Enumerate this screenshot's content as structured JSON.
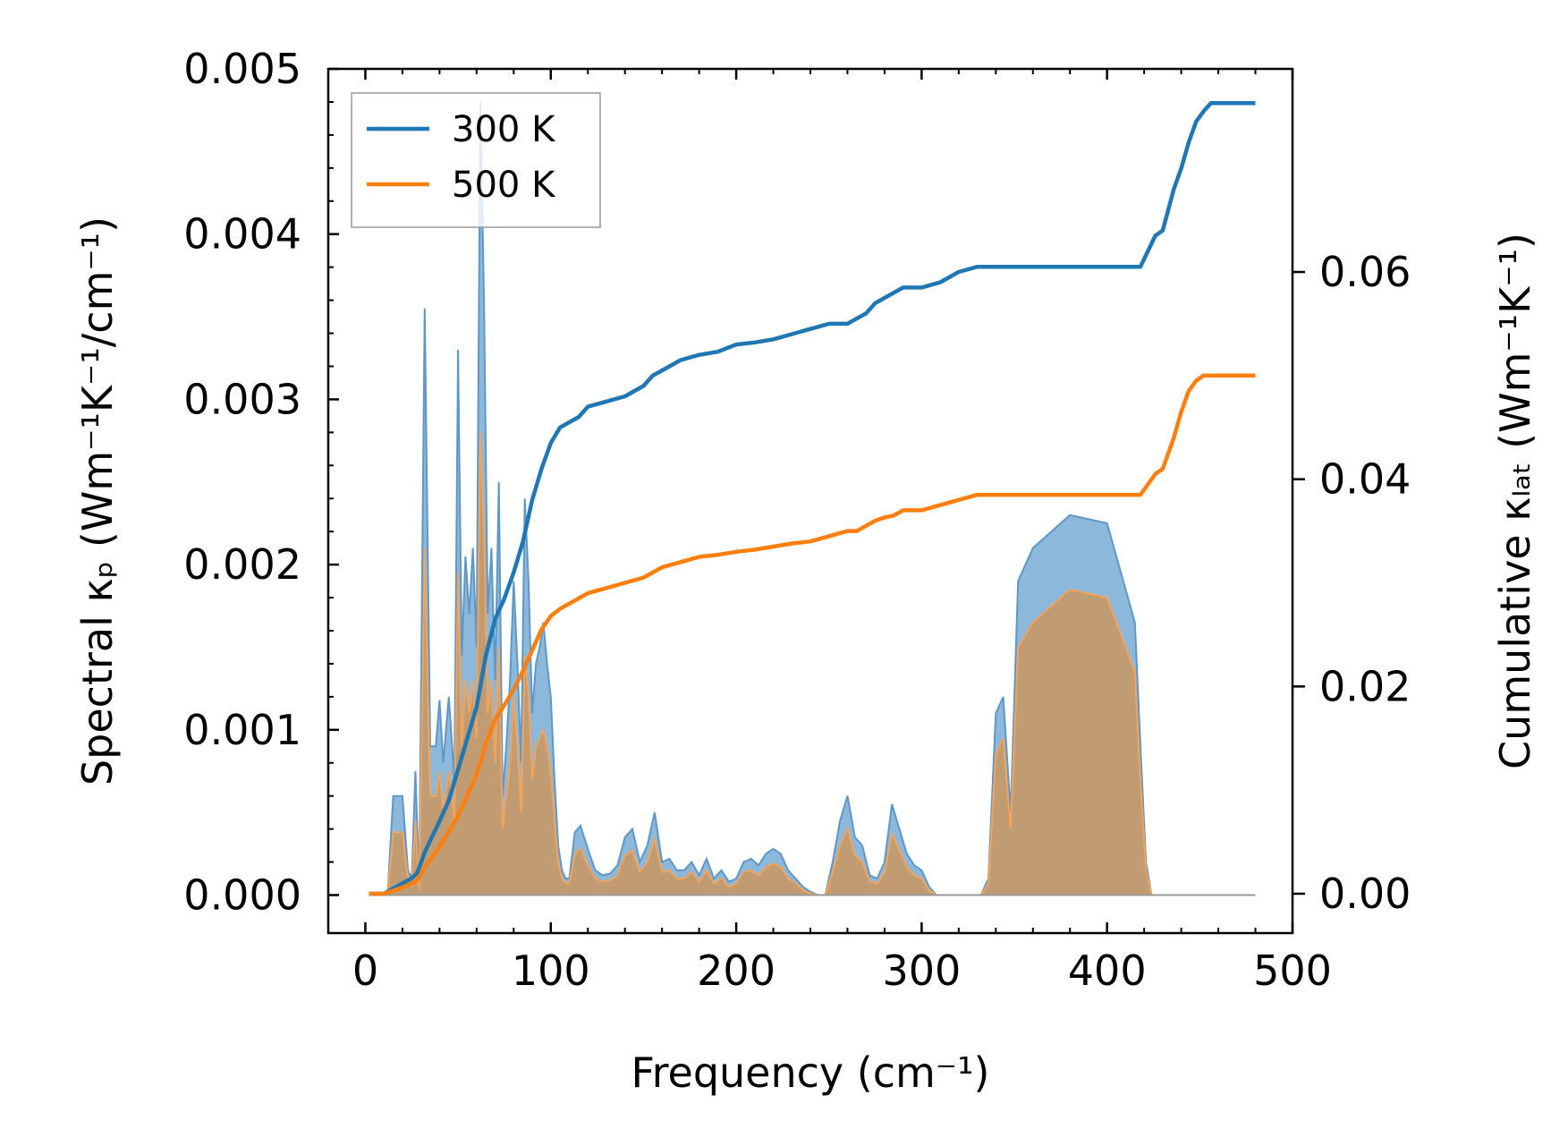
{
  "chart_data": {
    "type": "area",
    "xlabel": "Frequency (cm⁻¹)",
    "ylabel_left": "Spectral κₚ (Wm⁻¹K⁻¹/cm⁻¹)",
    "ylabel_right": "Cumulative κₗₐₜ (Wm⁻¹K⁻¹)",
    "xlim": [
      -20,
      500
    ],
    "ylim_left": [
      -0.00023,
      0.005
    ],
    "ylim_right": [
      -0.0038,
      0.0796
    ],
    "x_ticks": [
      "0",
      "100",
      "200",
      "300",
      "400",
      "500"
    ],
    "y_left_ticks": [
      "0.000",
      "0.001",
      "0.002",
      "0.003",
      "0.004",
      "0.005"
    ],
    "y_right_ticks": [
      "0.00",
      "0.02",
      "0.04",
      "0.06"
    ],
    "legend": {
      "position": "top-left",
      "entries": [
        "300 K",
        "500 K"
      ]
    },
    "colors": {
      "300 K": "#1f77b4",
      "500 K": "#ff7f0e",
      "fill_300": "#7fb0d8",
      "fill_500": "#c49a6c"
    },
    "spectral": {
      "x": [
        2,
        12,
        15,
        18,
        20,
        23,
        25,
        27,
        29,
        32,
        35,
        38,
        40,
        42,
        45,
        48,
        50,
        52,
        54,
        56,
        58,
        60,
        62,
        64,
        66,
        68,
        70,
        72,
        74,
        76,
        78,
        80,
        82,
        84,
        86,
        88,
        90,
        92,
        94,
        96,
        98,
        100,
        102,
        104,
        106,
        108,
        110,
        113,
        116,
        120,
        124,
        128,
        132,
        136,
        140,
        144,
        148,
        152,
        156,
        160,
        164,
        168,
        172,
        176,
        180,
        184,
        188,
        192,
        196,
        200,
        204,
        208,
        212,
        216,
        220,
        224,
        228,
        232,
        236,
        240,
        244,
        248,
        252,
        256,
        260,
        264,
        268,
        272,
        276,
        280,
        284,
        288,
        292,
        296,
        300,
        304,
        308,
        312,
        316,
        320,
        324,
        328,
        332,
        336,
        340,
        344,
        348,
        352,
        360,
        380,
        400,
        415,
        418,
        421,
        424,
        427,
        430,
        433,
        436,
        439,
        442,
        445,
        448,
        451,
        454,
        457,
        460,
        470,
        480
      ],
      "k300": [
        0,
        0,
        0.0006,
        0.0006,
        0.0006,
        0.00015,
        0.0001,
        0.00075,
        5e-05,
        0.00355,
        0.0009,
        0.0009,
        0.00118,
        0.0008,
        0.0012,
        0.0007,
        0.0033,
        0.00145,
        0.00205,
        0.0017,
        0.0021,
        0.0015,
        0.0048,
        0.0036,
        0.0017,
        0.0021,
        0.0013,
        0.0025,
        0.0006,
        0.0009,
        0.0013,
        0.0019,
        0.0014,
        0.0008,
        0.0024,
        0.0019,
        0.0011,
        0.0014,
        0.0015,
        0.00165,
        0.0014,
        0.0012,
        0.0007,
        0.0003,
        0.00015,
        0.0001,
        0.0001,
        0.00038,
        0.00042,
        0.00028,
        0.00015,
        0.00012,
        0.00013,
        0.00018,
        0.00035,
        0.0004,
        0.0002,
        0.0003,
        0.0005,
        0.0002,
        0.00022,
        0.00015,
        0.00015,
        0.0002,
        0.00012,
        0.00022,
        0.0001,
        0.00015,
        8e-05,
        0.0001,
        0.0002,
        0.00022,
        0.00018,
        0.00025,
        0.00028,
        0.00025,
        0.00015,
        0.0001,
        5e-05,
        2e-05,
        0,
        0,
        0.0002,
        0.00045,
        0.0006,
        0.00035,
        0.0003,
        0.00012,
        0.0001,
        0.0002,
        0.00055,
        0.0004,
        0.00025,
        0.00018,
        0.00015,
        5e-05,
        0,
        0,
        0,
        0,
        0,
        0,
        0,
        0.0001,
        0.0011,
        0.0012,
        0.0005,
        0.0019,
        0.0021,
        0.0023,
        0.00225,
        0.00165,
        0.0009,
        0.0002,
        0,
        0,
        0,
        0,
        0,
        0,
        0,
        0,
        0,
        0,
        0,
        0,
        0,
        0,
        0
      ],
      "k500": [
        0,
        0,
        0.00038,
        0.00038,
        0.00038,
        0.0001,
        5e-05,
        0.00045,
        3e-05,
        0.0021,
        0.0006,
        0.0006,
        0.00075,
        0.0005,
        0.00075,
        0.00045,
        0.00195,
        0.0009,
        0.0013,
        0.0011,
        0.0013,
        0.00095,
        0.0028,
        0.0022,
        0.0011,
        0.0013,
        0.0008,
        0.0015,
        0.0004,
        0.0006,
        0.0008,
        0.0012,
        0.0009,
        0.0005,
        0.00145,
        0.0012,
        0.0007,
        0.0009,
        0.00095,
        0.001,
        0.0009,
        0.00075,
        0.00045,
        0.0002,
        0.0001,
        7e-05,
        7e-05,
        0.00025,
        0.00028,
        0.00018,
        0.0001,
        8e-05,
        9e-05,
        0.00012,
        0.00024,
        0.00027,
        0.00014,
        0.0002,
        0.00034,
        0.00014,
        0.00015,
        0.0001,
        0.0001,
        0.00014,
        8e-05,
        0.00015,
        7e-05,
        0.0001,
        5e-05,
        7e-05,
        0.00014,
        0.00015,
        0.00012,
        0.00017,
        0.00019,
        0.00017,
        0.0001,
        7e-05,
        3e-05,
        1e-05,
        0,
        0,
        0.00014,
        0.0003,
        0.0004,
        0.00024,
        0.0002,
        8e-05,
        7e-05,
        0.00014,
        0.00037,
        0.00027,
        0.00017,
        0.00012,
        0.0001,
        3e-05,
        0,
        0,
        0,
        0,
        0,
        0,
        0,
        7e-05,
        0.00085,
        0.00095,
        0.0004,
        0.0015,
        0.00165,
        0.00185,
        0.0018,
        0.00135,
        0.0007,
        0.00015,
        0,
        0,
        0,
        0,
        0,
        0,
        0,
        0,
        0,
        0,
        0,
        0,
        0,
        0,
        0
      ]
    },
    "cumulative": {
      "x": [
        2,
        10,
        15,
        20,
        25,
        28,
        32,
        36,
        40,
        45,
        50,
        55,
        60,
        65,
        70,
        75,
        80,
        85,
        90,
        95,
        100,
        105,
        110,
        115,
        120,
        130,
        140,
        150,
        155,
        160,
        170,
        180,
        190,
        200,
        210,
        220,
        230,
        240,
        250,
        260,
        265,
        270,
        275,
        280,
        285,
        290,
        300,
        310,
        320,
        330,
        345,
        360,
        380,
        400,
        418,
        422,
        426,
        430,
        433,
        436,
        440,
        444,
        448,
        452,
        456,
        480
      ],
      "c300": [
        0,
        0,
        0.0005,
        0.001,
        0.0015,
        0.002,
        0.004,
        0.0055,
        0.007,
        0.009,
        0.012,
        0.015,
        0.018,
        0.023,
        0.0265,
        0.0285,
        0.031,
        0.034,
        0.038,
        0.041,
        0.0435,
        0.045,
        0.0455,
        0.046,
        0.047,
        0.0475,
        0.048,
        0.049,
        0.05,
        0.0505,
        0.0515,
        0.052,
        0.0523,
        0.053,
        0.0532,
        0.0535,
        0.054,
        0.0545,
        0.055,
        0.055,
        0.0555,
        0.056,
        0.057,
        0.0575,
        0.058,
        0.0585,
        0.0585,
        0.059,
        0.06,
        0.0605,
        0.0605,
        0.0605,
        0.0605,
        0.0605,
        0.0605,
        0.062,
        0.0635,
        0.064,
        0.066,
        0.068,
        0.07,
        0.0725,
        0.0745,
        0.0755,
        0.0763,
        0.0763
      ],
      "c500": [
        0,
        0,
        0.0003,
        0.0006,
        0.001,
        0.0013,
        0.0025,
        0.0035,
        0.0045,
        0.006,
        0.0075,
        0.0095,
        0.0115,
        0.0145,
        0.0168,
        0.0182,
        0.0197,
        0.0215,
        0.0235,
        0.0255,
        0.0268,
        0.0275,
        0.028,
        0.0285,
        0.029,
        0.0295,
        0.03,
        0.0305,
        0.031,
        0.0315,
        0.032,
        0.0325,
        0.0327,
        0.033,
        0.0332,
        0.0335,
        0.0338,
        0.034,
        0.0345,
        0.035,
        0.035,
        0.0355,
        0.036,
        0.0363,
        0.0365,
        0.037,
        0.037,
        0.0375,
        0.038,
        0.0385,
        0.0385,
        0.0385,
        0.0385,
        0.0385,
        0.0385,
        0.0395,
        0.0405,
        0.041,
        0.0425,
        0.044,
        0.0465,
        0.0485,
        0.0495,
        0.05,
        0.05,
        0.05
      ]
    }
  }
}
